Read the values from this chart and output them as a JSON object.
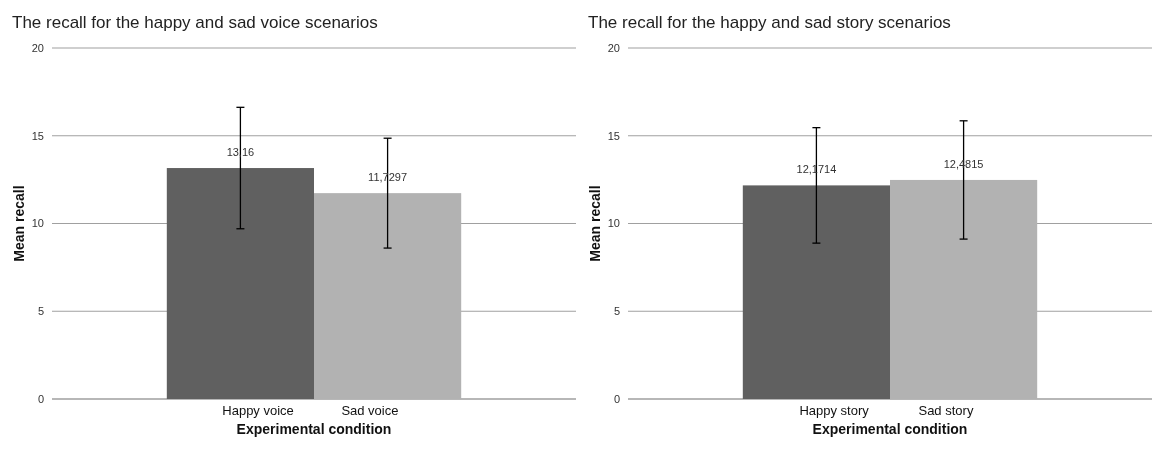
{
  "chart_data": [
    {
      "type": "bar",
      "title": "The recall for the happy and sad voice scenarios",
      "xlabel": "Experimental condition",
      "ylabel": "Mean recall",
      "categories": [
        "Happy voice",
        "Sad voice"
      ],
      "values": [
        13.16,
        11.7297
      ],
      "colors": [
        "#606060",
        "#b2b2b2"
      ],
      "errors": [
        3.46,
        3.13
      ],
      "value_labels": [
        "13,16",
        "11,7297"
      ],
      "ylim": [
        0,
        20
      ],
      "yticks": [
        0,
        5,
        10,
        15,
        20
      ],
      "grid": "y"
    },
    {
      "type": "bar",
      "title": "The recall for the happy and sad story scenarios",
      "xlabel": "Experimental condition",
      "ylabel": "Mean recall",
      "categories": [
        "Happy story",
        "Sad story"
      ],
      "values": [
        12.1714,
        12.4815
      ],
      "colors": [
        "#606060",
        "#b2b2b2"
      ],
      "errors": [
        3.29,
        3.37
      ],
      "value_labels": [
        "12,1714",
        "12,4815"
      ],
      "ylim": [
        0,
        20
      ],
      "yticks": [
        0,
        5,
        10,
        15,
        20
      ],
      "grid": "y"
    }
  ]
}
